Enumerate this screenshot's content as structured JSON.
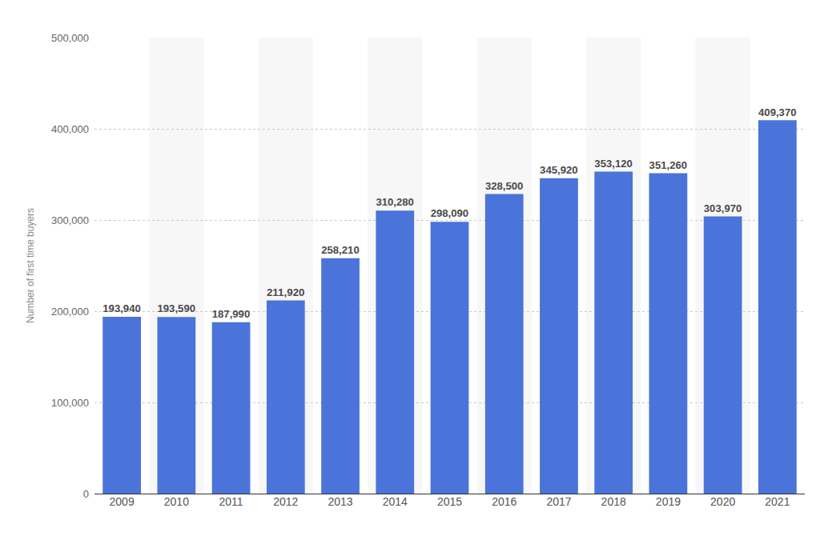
{
  "chart_data": {
    "type": "bar",
    "y_label": "Number of first time buyers",
    "categories": [
      "2009",
      "2010",
      "2011",
      "2012",
      "2013",
      "2014",
      "2015",
      "2016",
      "2017",
      "2018",
      "2019",
      "2020",
      "2021"
    ],
    "values": [
      193940,
      193590,
      187990,
      211920,
      258210,
      310280,
      298090,
      328500,
      345920,
      353120,
      351260,
      303970,
      409370
    ],
    "value_labels": [
      "193,940",
      "193,590",
      "187,990",
      "211,920",
      "258,210",
      "310,280",
      "298,090",
      "328,500",
      "345,920",
      "353,120",
      "351,260",
      "303,970",
      "409,370"
    ],
    "color": "#4a74d9",
    "ylim": [
      0,
      500000
    ],
    "yticks": [
      0,
      {
        "value": 100000,
        "label": "100,000"
      },
      {
        "value": 200000,
        "label": "200,000"
      },
      {
        "value": 300000,
        "label": "300,000"
      },
      {
        "value": 400000,
        "label": "400,000"
      },
      {
        "value": 500000,
        "label": "500,000"
      }
    ],
    "grid": true,
    "data_labels": true
  }
}
